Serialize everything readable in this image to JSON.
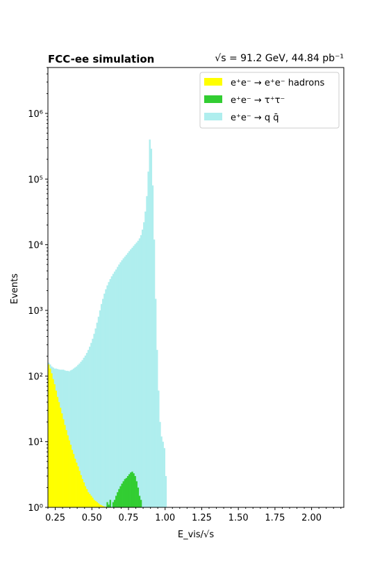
{
  "chart_data": {
    "type": "histogram",
    "title_left": "FCC-ee simulation",
    "title_right": "√s = 91.2 GeV, 44.84 pb⁻¹",
    "xlabel": "E_vis/√s",
    "ylabel": "Events",
    "xlim": [
      0.2,
      2.22
    ],
    "ylim": [
      1,
      5000000
    ],
    "yscale": "log",
    "grid": false,
    "legend_position": "top-right",
    "xticks": [
      0.25,
      0.5,
      0.75,
      1.0,
      1.25,
      1.5,
      1.75,
      2.0
    ],
    "xtick_labels": [
      "0.25",
      "0.50",
      "0.75",
      "1.00",
      "1.25",
      "1.50",
      "1.75",
      "2.00"
    ],
    "yticks": [
      1,
      10,
      100,
      1000,
      10000,
      100000,
      1000000
    ],
    "ytick_labels": [
      "10⁰",
      "10¹",
      "10²",
      "10³",
      "10⁴",
      "10⁵",
      "10⁶"
    ],
    "bin_width": 0.01,
    "series": [
      {
        "name": "e⁺e⁻ → q q̄",
        "color": "#afeeee",
        "bins_start": [
          0.2,
          1.1
        ],
        "values": [
          160,
          150,
          140,
          135,
          130,
          130,
          128,
          126,
          125,
          125,
          125,
          122,
          120,
          120,
          118,
          122,
          125,
          130,
          135,
          140,
          148,
          155,
          165,
          175,
          190,
          205,
          225,
          250,
          280,
          320,
          370,
          440,
          530,
          650,
          800,
          1000,
          1250,
          1500,
          1800,
          2100,
          2400,
          2700,
          3000,
          3300,
          3600,
          3900,
          4200,
          4600,
          5000,
          5400,
          5800,
          6200,
          6600,
          7000,
          7500,
          8000,
          8500,
          9000,
          9600,
          10200,
          10800,
          11500,
          12500,
          14000,
          17000,
          22000,
          32000,
          55000,
          130000,
          400000,
          290000,
          80000,
          12000,
          1500,
          250,
          60,
          20,
          12,
          10,
          8,
          3
        ]
      },
      {
        "name": "e⁺e⁻ → τ⁺τ⁻",
        "color": "#32cd32",
        "bins_start": [
          0.6,
          1.0
        ],
        "values": [
          1.2,
          1.1,
          1.3,
          1.0,
          1.2,
          1.3,
          1.5,
          1.7,
          1.9,
          2.1,
          2.3,
          2.5,
          2.7,
          2.8,
          3.0,
          3.2,
          3.4,
          3.5,
          3.3,
          3.0,
          2.5,
          2.0,
          1.5,
          1.3
        ]
      },
      {
        "name": "e⁺e⁻ → e⁺e⁻ hadrons",
        "color": "#ffff00",
        "bins_start": [
          0.2,
          0.65
        ],
        "values": [
          150,
          130,
          110,
          90,
          75,
          60,
          48,
          40,
          33,
          27,
          22,
          18,
          15,
          12.5,
          10.5,
          9,
          7.5,
          6.5,
          5.5,
          4.8,
          4.2,
          3.6,
          3.1,
          2.7,
          2.4,
          2.1,
          1.9,
          1.7,
          1.6,
          1.5,
          1.4,
          1.3,
          1.25,
          1.2,
          1.15,
          1.1,
          1.08,
          1.05,
          1.03,
          1.02,
          1.01,
          1.0,
          1.0,
          1.0,
          1.0
        ]
      }
    ],
    "legend": [
      {
        "label": "e⁺e⁻ → e⁺e⁻ hadrons",
        "color": "#ffff00"
      },
      {
        "label": "e⁺e⁻ → τ⁺τ⁻",
        "color": "#32cd32"
      },
      {
        "label": "e⁺e⁻ → q q̄",
        "color": "#afeeee"
      }
    ]
  }
}
